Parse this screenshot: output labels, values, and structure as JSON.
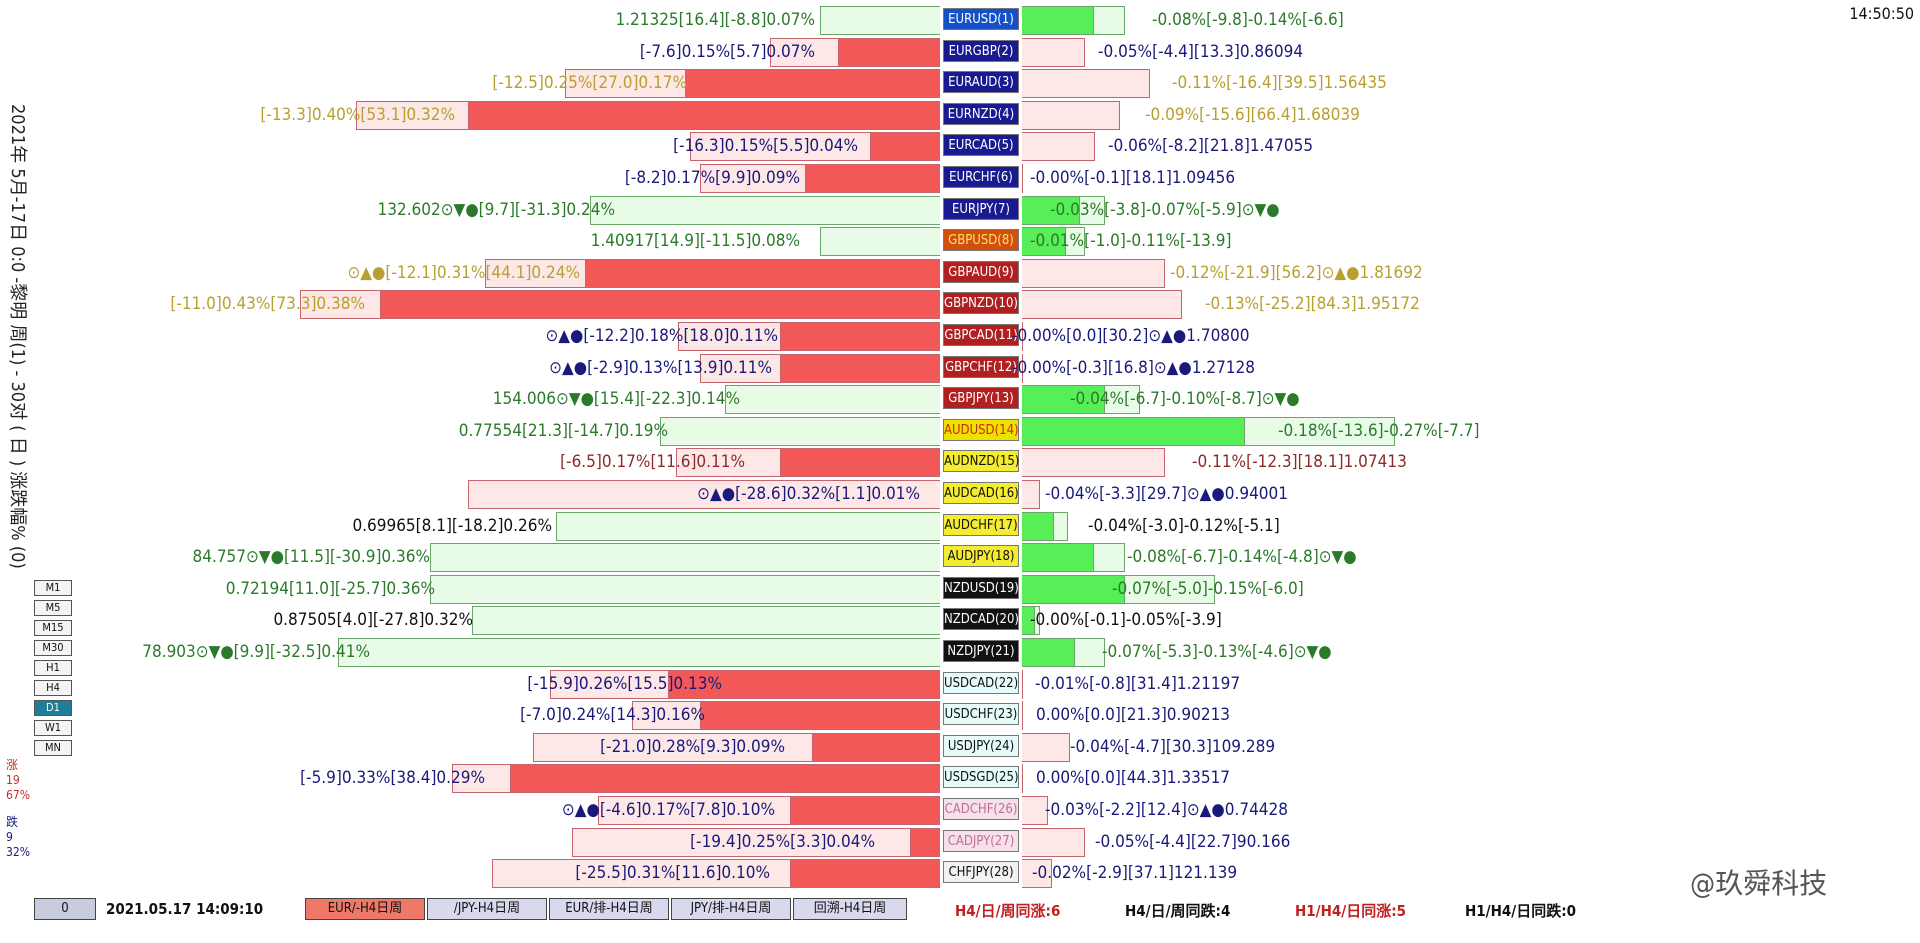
{
  "clock": "14:50:50",
  "vertical_title": "2021年 5月-17日 0:0 -黎明 周(1) - 30对 ( 日 ) 涨跌幅% (0)",
  "timeframes": [
    "M1",
    "M5",
    "M15",
    "M30",
    "H1",
    "H4",
    "D1",
    "W1",
    "MN"
  ],
  "active_timeframe": "D1",
  "side_stats": {
    "up_label": "涨",
    "up_count": "19",
    "up_pct": "67%",
    "down_label": "跌",
    "down_count": "9",
    "down_pct": "32%"
  },
  "rows": [
    {
      "pair": "EURUSD(1)",
      "pbg": "#1450c8",
      "pfg": "#ffffff",
      "left": "1.21325[16.4][-8.8]0.07%",
      "lc": "#2a7a2a",
      "right": "-0.08%[-9.8]-0.14%[-6.6]",
      "rc": "#2a7a2a"
    },
    {
      "pair": "EURGBP(2)",
      "pbg": "#1a1a90",
      "pfg": "#ffffff",
      "left": "[-7.6]0.15%[5.7]0.07%",
      "lc": "#1a1a7a",
      "right": "-0.05%[-4.4][13.3]0.86094",
      "rc": "#1a1a7a"
    },
    {
      "pair": "EURAUD(3)",
      "pbg": "#1a1a90",
      "pfg": "#ffffff",
      "left": "[-12.5]0.25%[27.0]0.17%",
      "lc": "#b8a030",
      "right": "-0.11%[-16.4][39.5]1.56435",
      "rc": "#b8a030"
    },
    {
      "pair": "EURNZD(4)",
      "pbg": "#1a1a90",
      "pfg": "#ffffff",
      "left": "[-13.3]0.40%[53.1]0.32%",
      "lc": "#b8a030",
      "right": "-0.09%[-15.6][66.4]1.68039",
      "rc": "#b8a030"
    },
    {
      "pair": "EURCAD(5)",
      "pbg": "#1a1a90",
      "pfg": "#ffffff",
      "left": "[-16.3]0.15%[5.5]0.04%",
      "lc": "#1a1a7a",
      "right": "-0.06%[-8.2][21.8]1.47055",
      "rc": "#1a1a7a"
    },
    {
      "pair": "EURCHF(6)",
      "pbg": "#1a1a90",
      "pfg": "#ffffff",
      "left": "[-8.2]0.17%[9.9]0.09%",
      "lc": "#1a1a7a",
      "right": "-0.00%[-0.1][18.1]1.09456",
      "rc": "#1a1a7a"
    },
    {
      "pair": "EURJPY(7)",
      "pbg": "#1a1a90",
      "pfg": "#ffffff",
      "left": "132.602⊙▼●[9.7][-31.3]0.24%",
      "lc": "#2a7a2a",
      "right": "-0.03%[-3.8]-0.07%[-5.9]⊙▼●",
      "rc": "#2a7a2a"
    },
    {
      "pair": "GBPUSD(8)",
      "pbg": "#d05010",
      "pfg": "#ffe060",
      "left": "1.40917[14.9][-11.5]0.08%",
      "lc": "#2a7a2a",
      "right": "-0.01%[-1.0]-0.11%[-13.9]",
      "rc": "#2a7a2a"
    },
    {
      "pair": "GBPAUD(9)",
      "pbg": "#b02020",
      "pfg": "#ffffff",
      "left": "⊙▲●[-12.1]0.31%[44.1]0.24%",
      "lc": "#b8a030",
      "right": "-0.12%[-21.9][56.2]⊙▲●1.81692",
      "rc": "#b8a030"
    },
    {
      "pair": "GBPNZD(10)",
      "pbg": "#b02020",
      "pfg": "#ffffff",
      "left": "[-11.0]0.43%[73.3]0.38%",
      "lc": "#b8a030",
      "right": "-0.13%[-25.2][84.3]1.95172",
      "rc": "#b8a030"
    },
    {
      "pair": "GBPCAD(11)",
      "pbg": "#b02020",
      "pfg": "#ffffff",
      "left": "⊙▲●[-12.2]0.18%[18.0]0.11%",
      "lc": "#1a1a7a",
      "right": "-0.00%[0.0][30.2]⊙▲●1.70800",
      "rc": "#1a1a7a"
    },
    {
      "pair": "GBPCHF(12)",
      "pbg": "#b02020",
      "pfg": "#ffffff",
      "left": "⊙▲●[-2.9]0.13%[13.9]0.11%",
      "lc": "#1a1a7a",
      "right": "-0.00%[-0.3][16.8]⊙▲●1.27128",
      "rc": "#1a1a7a"
    },
    {
      "pair": "GBPJPY(13)",
      "pbg": "#b02020",
      "pfg": "#ffffff",
      "left": "154.006⊙▼●[15.4][-22.3]0.14%",
      "lc": "#2a7a2a",
      "right": "-0.04%[-6.7]-0.10%[-8.7]⊙▼●",
      "rc": "#2a7a2a"
    },
    {
      "pair": "AUDUSD(14)",
      "pbg": "#f0e000",
      "pfg": "#c03010",
      "left": "0.77554[21.3][-14.7]0.19%",
      "lc": "#2a7a2a",
      "right": "-0.18%[-13.6]-0.27%[-7.7]",
      "rc": "#2a7a2a"
    },
    {
      "pair": "AUDNZD(15)",
      "pbg": "#f4ec30",
      "pfg": "#111111",
      "left": "[-6.5]0.17%[11.6]0.11%",
      "lc": "#8a2a2a",
      "right": "-0.11%[-12.3][18.1]1.07413",
      "rc": "#8a2a2a"
    },
    {
      "pair": "AUDCAD(16)",
      "pbg": "#f4ec30",
      "pfg": "#111111",
      "left": "⊙▲●[-28.6]0.32%[1.1]0.01%",
      "lc": "#1a1a7a",
      "right": "-0.04%[-3.3][29.7]⊙▲●0.94001",
      "rc": "#1a1a7a"
    },
    {
      "pair": "AUDCHF(17)",
      "pbg": "#f4ec30",
      "pfg": "#111111",
      "left": "0.69965[8.1][-18.2]0.26%",
      "lc": "#111111",
      "right": "-0.04%[-3.0]-0.12%[-5.1]",
      "rc": "#111111"
    },
    {
      "pair": "AUDJPY(18)",
      "pbg": "#f4ec30",
      "pfg": "#111111",
      "left": "84.757⊙▼●[11.5][-30.9]0.36%",
      "lc": "#2a7a2a",
      "right": "-0.08%[-6.7]-0.14%[-4.8]⊙▼●",
      "rc": "#2a7a2a"
    },
    {
      "pair": "NZDUSD(19)",
      "pbg": "#111111",
      "pfg": "#ffffff",
      "left": "0.72194[11.0][-25.7]0.36%",
      "lc": "#2a7a2a",
      "right": "-0.07%[-5.0]-0.15%[-6.0]",
      "rc": "#2a7a2a"
    },
    {
      "pair": "NZDCAD(20)",
      "pbg": "#111111",
      "pfg": "#ffffff",
      "left": "0.87505[4.0][-27.8]0.32%",
      "lc": "#111111",
      "right": "-0.00%[-0.1]-0.05%[-3.9]",
      "rc": "#111111"
    },
    {
      "pair": "NZDJPY(21)",
      "pbg": "#111111",
      "pfg": "#ffffff",
      "left": "78.903⊙▼●[9.9][-32.5]0.41%",
      "lc": "#2a7a2a",
      "right": "-0.07%[-5.3]-0.13%[-4.6]⊙▼●",
      "rc": "#2a7a2a"
    },
    {
      "pair": "USDCAD(22)",
      "pbg": "#e8fbfb",
      "pfg": "#111111",
      "left": "[-15.9]0.26%[15.5]0.13%",
      "lc": "#1a1a7a",
      "right": "-0.01%[-0.8][31.4]1.21197",
      "rc": "#1a1a7a"
    },
    {
      "pair": "USDCHF(23)",
      "pbg": "#e8fbfb",
      "pfg": "#111111",
      "left": "[-7.0]0.24%[14.3]0.16%",
      "lc": "#1a1a7a",
      "right": "0.00%[0.0][21.3]0.90213",
      "rc": "#1a1a7a"
    },
    {
      "pair": "USDJPY(24)",
      "pbg": "#e8fbfb",
      "pfg": "#111111",
      "left": "[-21.0]0.28%[9.3]0.09%",
      "lc": "#1a1a7a",
      "right": "-0.04%[-4.7][30.3]109.289",
      "rc": "#1a1a7a"
    },
    {
      "pair": "USDSGD(25)",
      "pbg": "#e8fbfb",
      "pfg": "#111111",
      "left": "[-5.9]0.33%[38.4]0.29%",
      "lc": "#1a1a7a",
      "right": "0.00%[0.0][44.3]1.33517",
      "rc": "#1a1a7a"
    },
    {
      "pair": "CADCHF(26)",
      "pbg": "#f6e0ec",
      "pfg": "#c07090",
      "left": "⊙▲●[-4.6]0.17%[7.8]0.10%",
      "lc": "#1a1a7a",
      "right": "-0.03%[-2.2][12.4]⊙▲●0.74428",
      "rc": "#1a1a7a"
    },
    {
      "pair": "CADJPY(27)",
      "pbg": "#f6e0ec",
      "pfg": "#c07090",
      "left": "[-19.4]0.25%[3.3]0.04%",
      "lc": "#1a1a7a",
      "right": "-0.05%[-4.4][22.7]90.166",
      "rc": "#1a1a7a"
    },
    {
      "pair": "CHFJPY(28)",
      "pbg": "#f2f2f2",
      "pfg": "#111111",
      "left": "[-25.5]0.31%[11.6]0.10%",
      "lc": "#1a1a7a",
      "right": "-0.02%[-2.9][37.1]121.139",
      "rc": "#1a1a7a"
    }
  ],
  "bottom": {
    "zero_button": "0",
    "datetime": "2021.05.17 14:09:10",
    "buttons": [
      "EUR/-H4日周",
      "/JPY-H4日周",
      "EUR/排-H4日周",
      "JPY/排-H4日周",
      "回溯-H4日周"
    ],
    "stats": [
      "H4/日/周同涨:6",
      "H4/日/周同跌:4",
      "H1/H4/日同涨:5",
      "H1/H4/日同跌:0"
    ]
  },
  "watermark": "@玖舜科技",
  "colors": {
    "pos_big": "#f25858",
    "pos_small": "#fde7e7",
    "neg_big": "#58ee58",
    "neg_small": "#e8fbe6"
  }
}
